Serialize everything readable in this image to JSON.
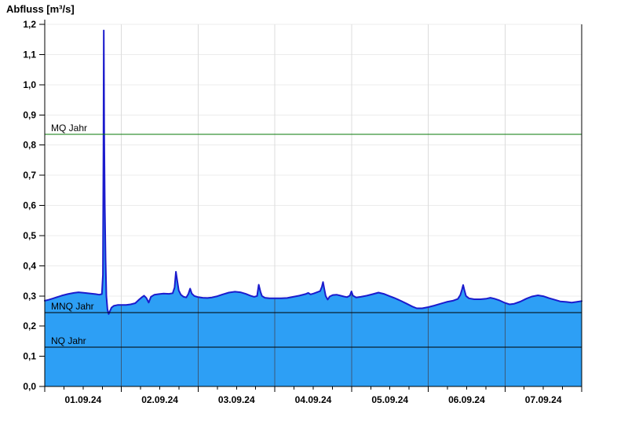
{
  "chart_data": {
    "type": "area",
    "title": "Abfluss [m³/s]",
    "xlim_days": [
      0,
      7
    ],
    "ylim": [
      0,
      1.2
    ],
    "grid": {
      "horizontal": true,
      "vertical_day_lines": [
        1,
        2,
        3,
        4,
        5,
        6
      ],
      "minor_x_ticks_per_day": 4
    },
    "y_ticks": [
      {
        "value": 0.0,
        "label": "0,0"
      },
      {
        "value": 0.1,
        "label": "0,1"
      },
      {
        "value": 0.2,
        "label": "0,2"
      },
      {
        "value": 0.3,
        "label": "0,3"
      },
      {
        "value": 0.4,
        "label": "0,4"
      },
      {
        "value": 0.5,
        "label": "0,5"
      },
      {
        "value": 0.6,
        "label": "0,6"
      },
      {
        "value": 0.7,
        "label": "0,7"
      },
      {
        "value": 0.8,
        "label": "0,8"
      },
      {
        "value": 0.9,
        "label": "0,9"
      },
      {
        "value": 1.0,
        "label": "1,0"
      },
      {
        "value": 1.1,
        "label": "1,1"
      },
      {
        "value": 1.2,
        "label": "1,2"
      }
    ],
    "x_ticks": [
      {
        "day": 0,
        "label": "01.09.24"
      },
      {
        "day": 1,
        "label": "02.09.24"
      },
      {
        "day": 2,
        "label": "03.09.24"
      },
      {
        "day": 3,
        "label": "04.09.24"
      },
      {
        "day": 4,
        "label": "05.09.24"
      },
      {
        "day": 5,
        "label": "06.09.24"
      },
      {
        "day": 6,
        "label": "07.09.24"
      }
    ],
    "reference_lines": [
      {
        "label": "MQ Jahr",
        "value": 0.835,
        "color": "#077807"
      },
      {
        "label": "MNQ Jahr",
        "value": 0.245,
        "color": "#000000"
      },
      {
        "label": "NQ Jahr",
        "value": 0.13,
        "color": "#000000"
      }
    ],
    "colors": {
      "area_fill": "#2D9FF5",
      "series_line": "#1B1BCD",
      "grid_horizontal": "#ECECEC",
      "grid_vertical": "#DCDCDC",
      "grid_vertical_on_fill": "#3A5A7A",
      "axis": "#000000",
      "text": "#000000"
    },
    "series": [
      {
        "name": "Abfluss",
        "points": [
          [
            0.0,
            0.284
          ],
          [
            0.05,
            0.287
          ],
          [
            0.1,
            0.291
          ],
          [
            0.16,
            0.296
          ],
          [
            0.22,
            0.301
          ],
          [
            0.3,
            0.306
          ],
          [
            0.38,
            0.31
          ],
          [
            0.44,
            0.312
          ],
          [
            0.52,
            0.31
          ],
          [
            0.6,
            0.308
          ],
          [
            0.66,
            0.306
          ],
          [
            0.71,
            0.304
          ],
          [
            0.745,
            0.306
          ],
          [
            0.758,
            0.37
          ],
          [
            0.765,
            0.8
          ],
          [
            0.77,
            1.18
          ],
          [
            0.776,
            0.82
          ],
          [
            0.783,
            0.6
          ],
          [
            0.793,
            0.42
          ],
          [
            0.803,
            0.3
          ],
          [
            0.818,
            0.256
          ],
          [
            0.833,
            0.24
          ],
          [
            0.85,
            0.25
          ],
          [
            0.87,
            0.261
          ],
          [
            0.9,
            0.267
          ],
          [
            0.95,
            0.27
          ],
          [
            1.0,
            0.27
          ],
          [
            1.06,
            0.27
          ],
          [
            1.12,
            0.272
          ],
          [
            1.18,
            0.276
          ],
          [
            1.23,
            0.288
          ],
          [
            1.268,
            0.296
          ],
          [
            1.295,
            0.301
          ],
          [
            1.325,
            0.293
          ],
          [
            1.355,
            0.278
          ],
          [
            1.385,
            0.297
          ],
          [
            1.43,
            0.304
          ],
          [
            1.49,
            0.306
          ],
          [
            1.55,
            0.308
          ],
          [
            1.62,
            0.307
          ],
          [
            1.668,
            0.309
          ],
          [
            1.693,
            0.328
          ],
          [
            1.71,
            0.38
          ],
          [
            1.727,
            0.35
          ],
          [
            1.747,
            0.318
          ],
          [
            1.775,
            0.304
          ],
          [
            1.81,
            0.297
          ],
          [
            1.845,
            0.295
          ],
          [
            1.873,
            0.307
          ],
          [
            1.895,
            0.324
          ],
          [
            1.917,
            0.308
          ],
          [
            1.95,
            0.3
          ],
          [
            2.0,
            0.296
          ],
          [
            2.06,
            0.294
          ],
          [
            2.12,
            0.293
          ],
          [
            2.18,
            0.295
          ],
          [
            2.25,
            0.299
          ],
          [
            2.32,
            0.305
          ],
          [
            2.4,
            0.311
          ],
          [
            2.48,
            0.314
          ],
          [
            2.55,
            0.312
          ],
          [
            2.62,
            0.307
          ],
          [
            2.68,
            0.301
          ],
          [
            2.73,
            0.297
          ],
          [
            2.768,
            0.3
          ],
          [
            2.79,
            0.337
          ],
          [
            2.812,
            0.314
          ],
          [
            2.832,
            0.3
          ],
          [
            2.87,
            0.294
          ],
          [
            2.93,
            0.292
          ],
          [
            3.0,
            0.292
          ],
          [
            3.08,
            0.292
          ],
          [
            3.16,
            0.293
          ],
          [
            3.24,
            0.297
          ],
          [
            3.32,
            0.301
          ],
          [
            3.4,
            0.306
          ],
          [
            3.435,
            0.31
          ],
          [
            3.465,
            0.305
          ],
          [
            3.505,
            0.308
          ],
          [
            3.55,
            0.312
          ],
          [
            3.59,
            0.316
          ],
          [
            3.613,
            0.33
          ],
          [
            3.628,
            0.346
          ],
          [
            3.645,
            0.322
          ],
          [
            3.663,
            0.3
          ],
          [
            3.688,
            0.288
          ],
          [
            3.715,
            0.298
          ],
          [
            3.755,
            0.303
          ],
          [
            3.805,
            0.304
          ],
          [
            3.855,
            0.301
          ],
          [
            3.9,
            0.298
          ],
          [
            3.94,
            0.296
          ],
          [
            3.978,
            0.301
          ],
          [
            3.998,
            0.315
          ],
          [
            4.018,
            0.301
          ],
          [
            4.06,
            0.295
          ],
          [
            4.12,
            0.297
          ],
          [
            4.2,
            0.301
          ],
          [
            4.28,
            0.306
          ],
          [
            4.35,
            0.311
          ],
          [
            4.42,
            0.307
          ],
          [
            4.49,
            0.3
          ],
          [
            4.56,
            0.293
          ],
          [
            4.64,
            0.284
          ],
          [
            4.72,
            0.274
          ],
          [
            4.79,
            0.265
          ],
          [
            4.85,
            0.259
          ],
          [
            4.92,
            0.259
          ],
          [
            5.0,
            0.263
          ],
          [
            5.08,
            0.268
          ],
          [
            5.16,
            0.274
          ],
          [
            5.24,
            0.28
          ],
          [
            5.32,
            0.284
          ],
          [
            5.385,
            0.29
          ],
          [
            5.418,
            0.303
          ],
          [
            5.44,
            0.322
          ],
          [
            5.455,
            0.336
          ],
          [
            5.472,
            0.318
          ],
          [
            5.492,
            0.3
          ],
          [
            5.53,
            0.292
          ],
          [
            5.6,
            0.289
          ],
          [
            5.68,
            0.289
          ],
          [
            5.76,
            0.291
          ],
          [
            5.81,
            0.294
          ],
          [
            5.86,
            0.291
          ],
          [
            5.93,
            0.285
          ],
          [
            6.0,
            0.277
          ],
          [
            6.06,
            0.272
          ],
          [
            6.12,
            0.274
          ],
          [
            6.2,
            0.281
          ],
          [
            6.28,
            0.291
          ],
          [
            6.35,
            0.298
          ],
          [
            6.43,
            0.302
          ],
          [
            6.5,
            0.299
          ],
          [
            6.57,
            0.293
          ],
          [
            6.65,
            0.287
          ],
          [
            6.72,
            0.282
          ],
          [
            6.8,
            0.28
          ],
          [
            6.87,
            0.278
          ],
          [
            6.93,
            0.28
          ],
          [
            7.0,
            0.283
          ]
        ]
      }
    ]
  }
}
